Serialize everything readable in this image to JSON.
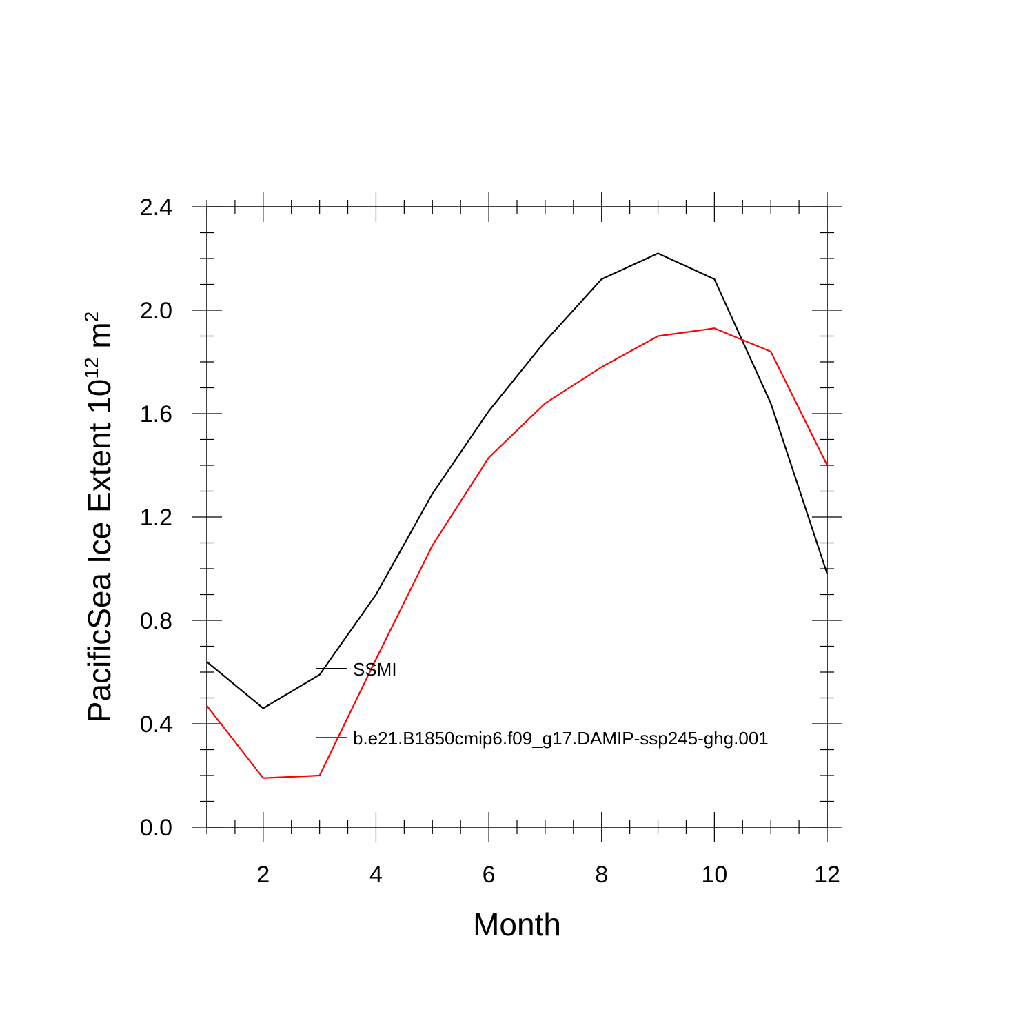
{
  "chart_data": {
    "type": "line",
    "title": "",
    "xlabel": "Month",
    "ylabel_main": "PacificSea Ice Extent 10",
    "ylabel_exp": "12",
    "ylabel_unit": " m",
    "ylabel_unit_exp": "2",
    "xlim": [
      1,
      12
    ],
    "ylim": [
      0.0,
      2.4
    ],
    "x_ticks": [
      2,
      4,
      6,
      8,
      10,
      12
    ],
    "x_tick_labels": [
      "2",
      "4",
      "6",
      "8",
      "10",
      "12"
    ],
    "y_ticks": [
      0.0,
      0.4,
      0.8,
      1.2,
      1.6,
      2.0,
      2.4
    ],
    "y_tick_labels": [
      "0.0",
      "0.4",
      "0.8",
      "1.2",
      "1.6",
      "2.0",
      "2.4"
    ],
    "x": [
      1,
      2,
      3,
      4,
      5,
      6,
      7,
      8,
      9,
      10,
      11,
      12
    ],
    "series": [
      {
        "name": "SSMI",
        "color": "#000000",
        "values": [
          0.64,
          0.46,
          0.59,
          0.9,
          1.29,
          1.61,
          1.88,
          2.12,
          2.22,
          2.12,
          1.64,
          0.98
        ]
      },
      {
        "name": "b.e21.B1850cmip6.f09_g17.DAMIP-ssp245-ghg.001",
        "color": "#ff0000",
        "values": [
          0.47,
          0.19,
          0.2,
          0.65,
          1.09,
          1.43,
          1.64,
          1.78,
          1.9,
          1.93,
          1.84,
          1.4
        ]
      }
    ],
    "legend_position": "center-left inside plot"
  }
}
